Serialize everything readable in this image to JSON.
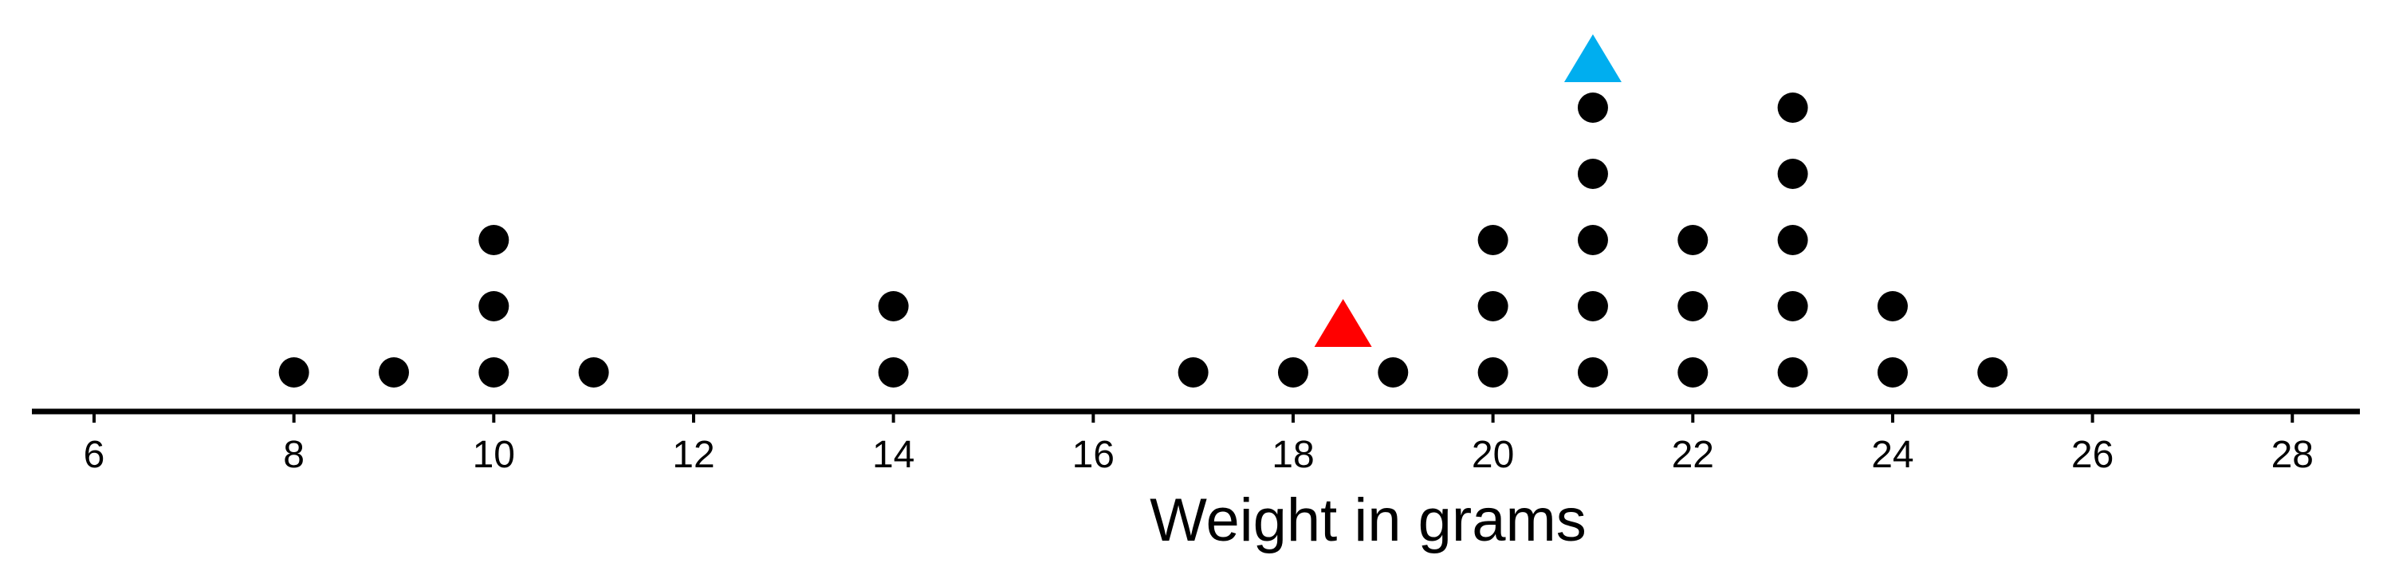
{
  "chart_data": {
    "type": "dot_plot",
    "title": "",
    "xlabel": "Weight in grams",
    "ylabel": "",
    "xlim": [
      5.4,
      28.7
    ],
    "xticks": [
      6,
      8,
      10,
      12,
      14,
      16,
      18,
      20,
      22,
      24,
      26,
      28
    ],
    "grid": false,
    "legend": "none",
    "dot_color": "#000000",
    "points": [
      {
        "x": 8,
        "count": 1
      },
      {
        "x": 9,
        "count": 1
      },
      {
        "x": 10,
        "count": 3
      },
      {
        "x": 11,
        "count": 1
      },
      {
        "x": 14,
        "count": 2
      },
      {
        "x": 17,
        "count": 1
      },
      {
        "x": 18,
        "count": 1
      },
      {
        "x": 19,
        "count": 1
      },
      {
        "x": 20,
        "count": 3
      },
      {
        "x": 21,
        "count": 5
      },
      {
        "x": 22,
        "count": 3
      },
      {
        "x": 23,
        "count": 5
      },
      {
        "x": 24,
        "count": 2
      },
      {
        "x": 25,
        "count": 1
      }
    ],
    "markers": [
      {
        "x": 18.5,
        "shape": "triangle",
        "color": "#ff0000"
      },
      {
        "x": 21,
        "shape": "triangle",
        "color": "#00aeef"
      }
    ]
  }
}
